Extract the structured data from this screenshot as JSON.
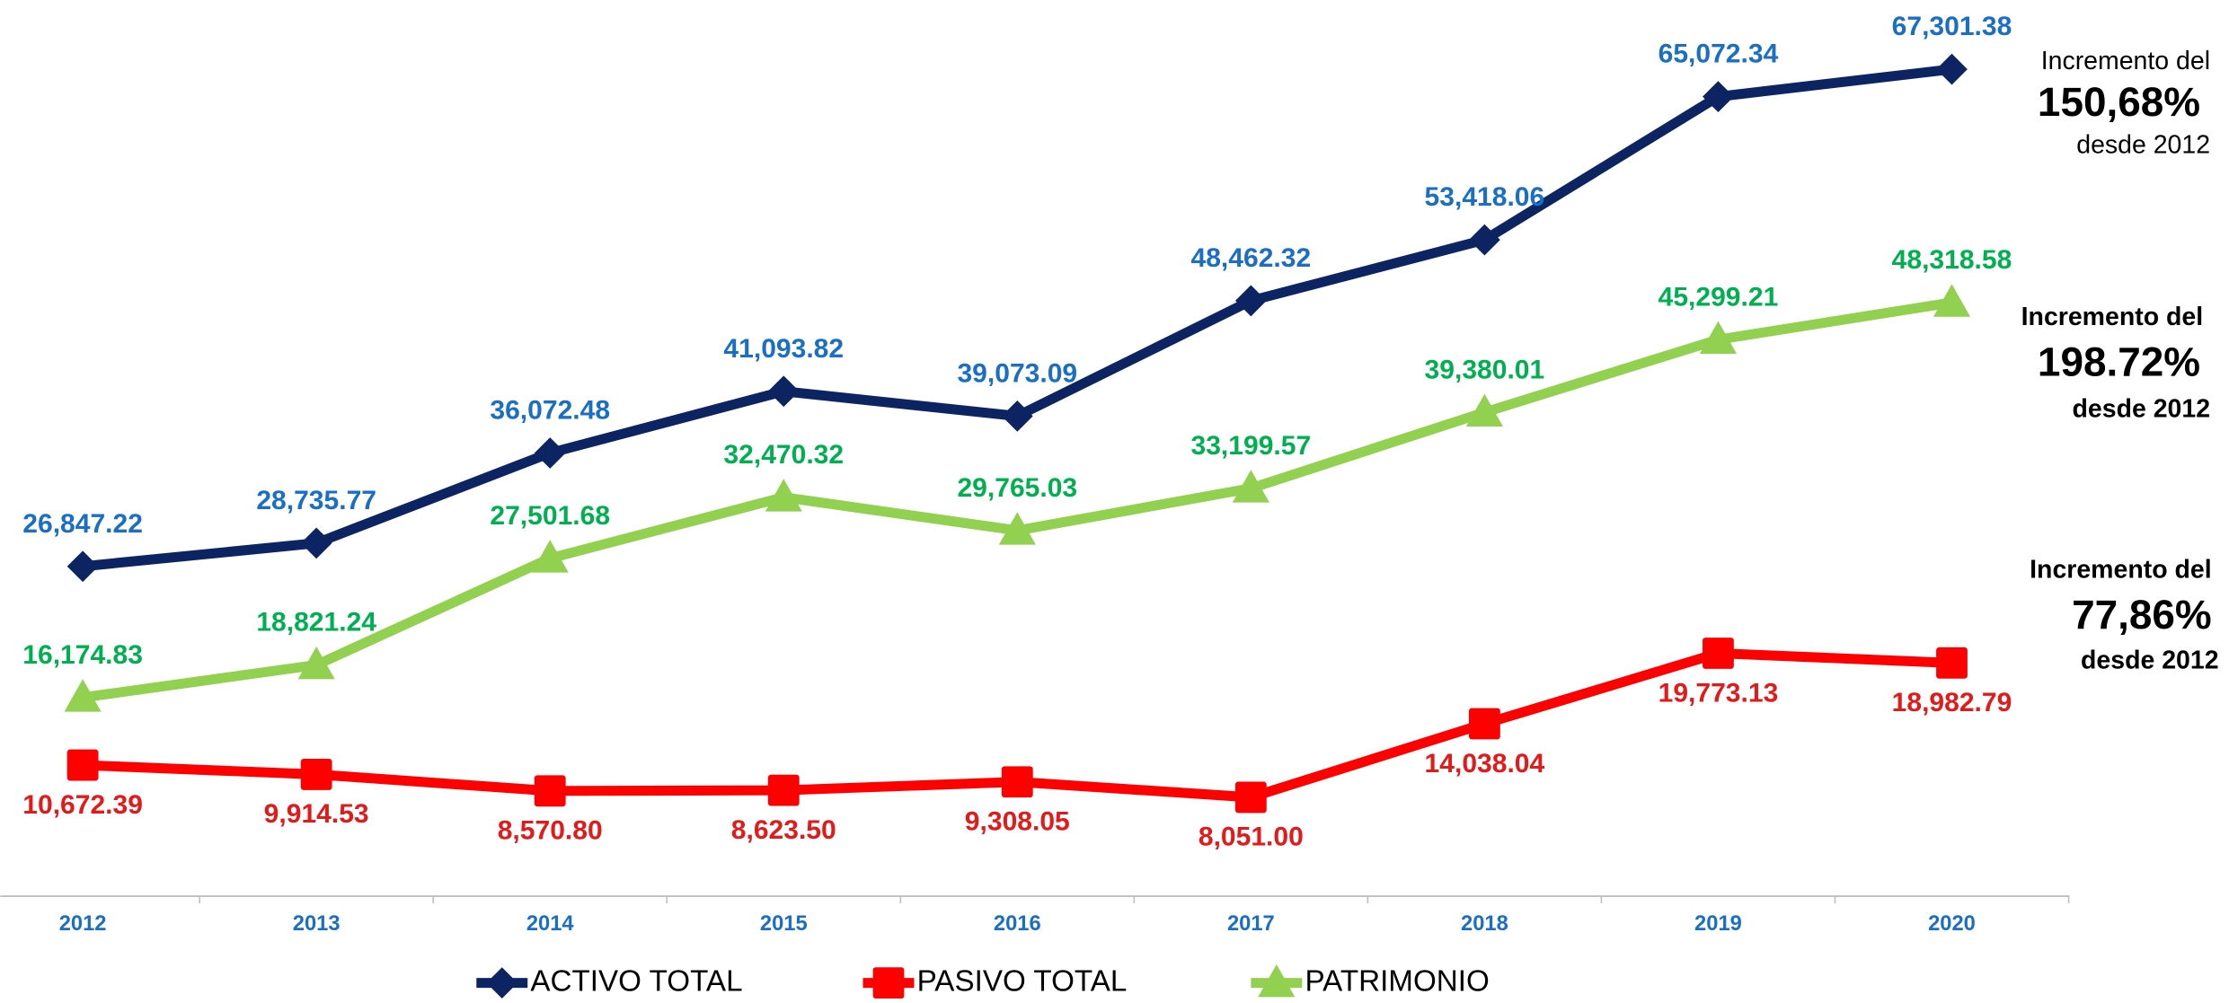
{
  "chart_data": {
    "type": "line",
    "categories": [
      "2012",
      "2013",
      "2014",
      "2015",
      "2016",
      "2017",
      "2018",
      "2019",
      "2020"
    ],
    "ylim": [
      0,
      70000
    ],
    "series": [
      {
        "name": "ACTIVO TOTAL",
        "color": "#0d2462",
        "label_color": "#1a6fc4",
        "marker": "diamond",
        "values": [
          26847.22,
          28735.77,
          36072.48,
          41093.82,
          39073.09,
          48462.32,
          53418.06,
          65072.34,
          67301.38
        ],
        "value_labels": [
          "26,847.22",
          "28,735.77",
          "36,072.48",
          "41,093.82",
          "39,073.09",
          "48,462.32",
          "53,418.06",
          "65,072.34",
          "67,301.38"
        ]
      },
      {
        "name": "PASIVO TOTAL",
        "color": "#ff0000",
        "label_color": "#e31a1a",
        "marker": "square",
        "values": [
          10672.39,
          9914.53,
          8570.8,
          8623.5,
          9308.05,
          8051.0,
          14038.04,
          19773.13,
          18982.79
        ],
        "value_labels": [
          "10,672.39",
          "9,914.53",
          "8,570.80",
          "8,623.50",
          "9,308.05",
          "8,051.00",
          "14,038.04",
          "19,773.13",
          "18,982.79"
        ]
      },
      {
        "name": "PATRIMONIO",
        "color": "#92d050",
        "label_color": "#00b050",
        "marker": "triangle",
        "values": [
          16174.83,
          18821.24,
          27501.68,
          32470.32,
          29765.03,
          33199.57,
          39380.01,
          45299.21,
          48318.58
        ],
        "value_labels": [
          "16,174.83",
          "18,821.24",
          "27,501.68",
          "32,470.32",
          "29,765.03",
          "33,199.57",
          "39,380.01",
          "45,299.21",
          "48,318.58"
        ]
      }
    ],
    "annotations": [
      {
        "lines": [
          "Incremento del",
          "150,68%",
          "desde 2012"
        ],
        "color": "#0d2462"
      },
      {
        "lines": [
          "Incremento del",
          "198.72%",
          "desde 2012"
        ],
        "color": "#00b050"
      },
      {
        "lines": [
          "Incremento del",
          "77,86%",
          "desde 2012"
        ],
        "color": "#e31a1a"
      }
    ]
  }
}
